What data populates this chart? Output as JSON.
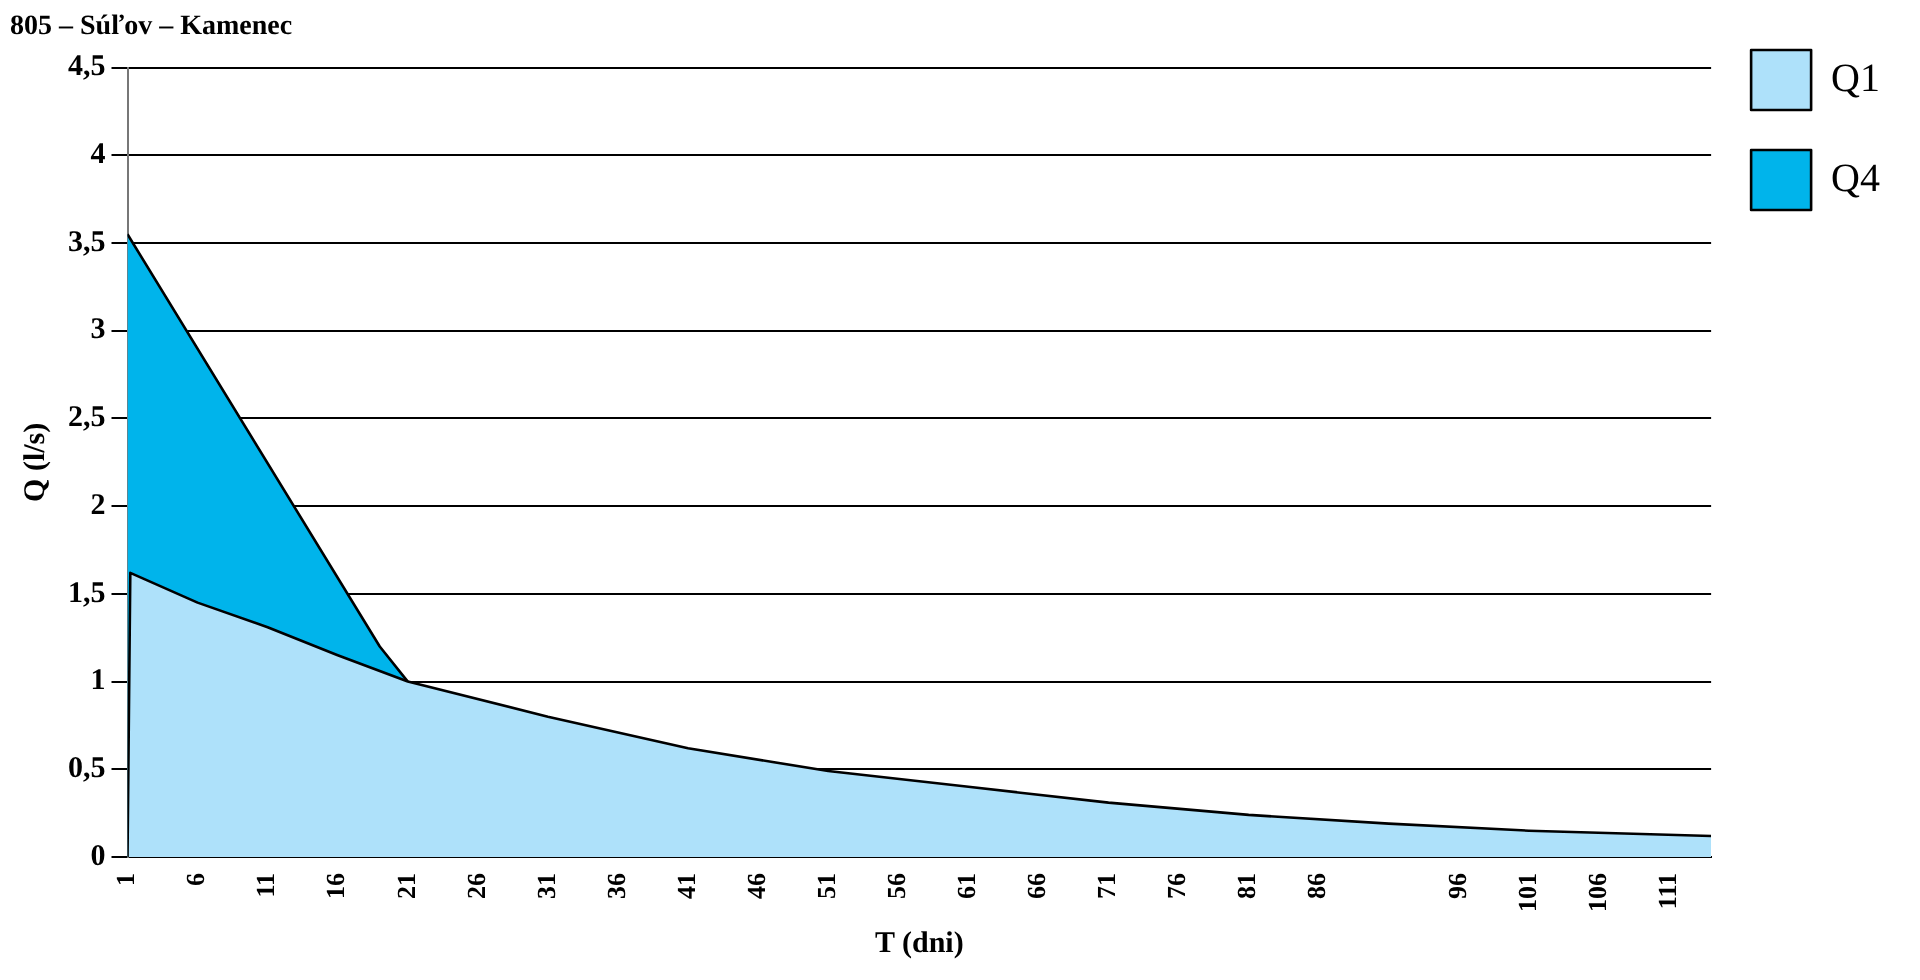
{
  "chart_data": {
    "type": "area",
    "title": "805 – Súľov – Kamenec",
    "xlabel": "T (dni)",
    "ylabel": "Q (l/s)",
    "xlim": [
      1,
      114
    ],
    "xticks": [
      1,
      6,
      11,
      16,
      21,
      26,
      31,
      36,
      41,
      46,
      51,
      56,
      61,
      66,
      71,
      76,
      81,
      86,
      96,
      101,
      106,
      111
    ],
    "ylim": [
      0,
      4.5
    ],
    "yticks": [
      0,
      {
        "value": 0.5,
        "label": "0,5"
      },
      1,
      {
        "value": 1.5,
        "label": "1,5"
      },
      2,
      {
        "value": 2.5,
        "label": "2,5"
      },
      3,
      {
        "value": 3.5,
        "label": "3,5"
      },
      4,
      {
        "value": 4.5,
        "label": "4,5"
      }
    ],
    "grid": "y",
    "legend": "right",
    "marker": "none",
    "series": [
      {
        "name": "Q1",
        "color": "#aee1fa",
        "x": [
          1,
          1.2,
          6,
          11,
          16,
          21,
          31,
          41,
          51,
          61,
          71,
          81,
          91,
          101,
          114
        ],
        "values": [
          0,
          1.62,
          1.45,
          1.31,
          1.15,
          1.0,
          0.8,
          0.62,
          0.49,
          0.4,
          0.31,
          0.24,
          0.19,
          0.15,
          0.12
        ]
      },
      {
        "name": "Q4",
        "color": "#00b4eb",
        "x": [
          1,
          19,
          21
        ],
        "values": [
          3.55,
          1.2,
          1.0
        ]
      }
    ]
  }
}
